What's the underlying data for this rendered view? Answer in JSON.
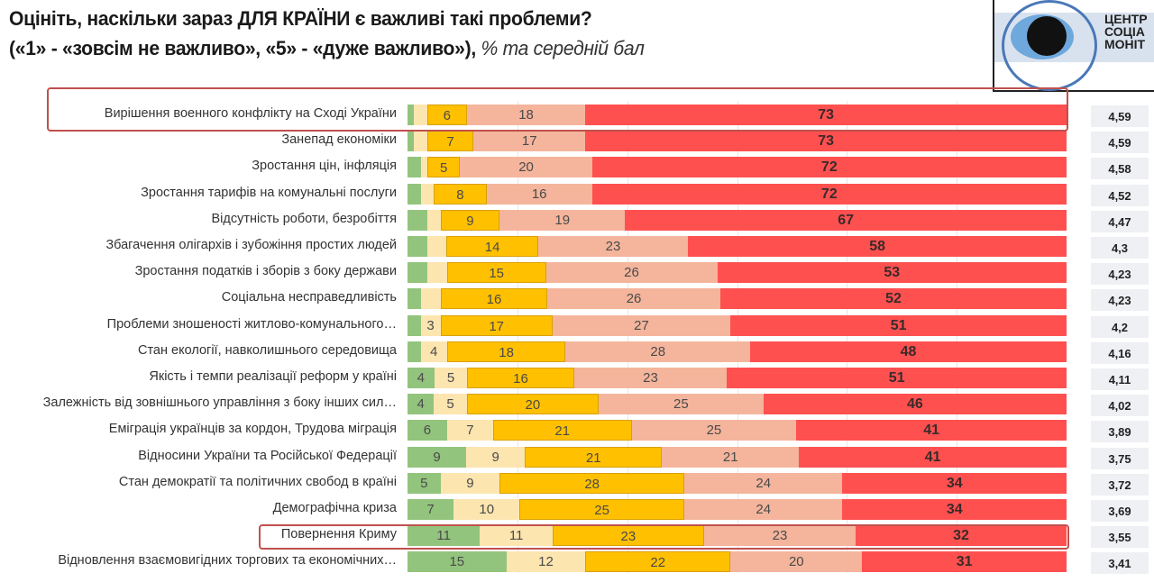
{
  "title_line1": "Оцініть, наскільки зараз ДЛЯ КРАЇНИ є важливі такі проблеми?",
  "title_line2": "(«1» - «зовсім не важливо», «5» - «дуже важливо»),",
  "title_line2_italic": "% та середній бал",
  "logo_text": [
    "ЦЕНТР",
    "СОЦІА",
    "МОНІТ"
  ],
  "chart_data": {
    "type": "bar",
    "orientation": "horizontal",
    "stacked": true,
    "unit": "%",
    "colors": [
      "#93c47d",
      "#fde5b0",
      "#ffc000",
      "#f4b59c",
      "#ff5050"
    ],
    "highlighted_rows": [
      0,
      16
    ],
    "rows": [
      {
        "label": "Вирішення военного конфлікту на Сході України",
        "values": [
          1,
          2,
          6,
          18,
          73
        ],
        "labels": [
          null,
          null,
          "6",
          "18",
          "73"
        ],
        "score": "4,59"
      },
      {
        "label": "Занепад економіки",
        "values": [
          1,
          2,
          7,
          17,
          73
        ],
        "labels": [
          null,
          null,
          "7",
          "17",
          "73"
        ],
        "score": "4,59"
      },
      {
        "label": "Зростання цін, інфляція",
        "values": [
          2,
          1,
          5,
          20,
          72
        ],
        "labels": [
          null,
          null,
          "5",
          "20",
          "72"
        ],
        "score": "4,58"
      },
      {
        "label": "Зростання тарифів на комунальні послуги",
        "values": [
          2,
          2,
          8,
          16,
          72
        ],
        "labels": [
          null,
          null,
          "8",
          "16",
          "72"
        ],
        "score": "4,52"
      },
      {
        "label": "Відсутність роботи, безробіття",
        "values": [
          3,
          2,
          9,
          19,
          67
        ],
        "labels": [
          null,
          null,
          "9",
          "19",
          "67"
        ],
        "score": "4,47"
      },
      {
        "label": "Збагачення олігархів і зубожіння простих людей",
        "values": [
          3,
          3,
          14,
          23,
          58
        ],
        "labels": [
          null,
          null,
          "14",
          "23",
          "58"
        ],
        "score": "4,3"
      },
      {
        "label": "Зростання податків і зборів з боку держави",
        "values": [
          3,
          3,
          15,
          26,
          53
        ],
        "labels": [
          null,
          null,
          "15",
          "26",
          "53"
        ],
        "score": "4,23"
      },
      {
        "label": "Соціальна несправедливість",
        "values": [
          2,
          3,
          16,
          26,
          52
        ],
        "labels": [
          null,
          null,
          "16",
          "26",
          "52"
        ],
        "score": "4,23"
      },
      {
        "label": "Проблеми зношеності житлово-комунального…",
        "values": [
          2,
          3,
          17,
          27,
          51
        ],
        "labels": [
          null,
          "3",
          "17",
          "27",
          "51"
        ],
        "score": "4,2"
      },
      {
        "label": "Стан екології, навколишнього середовища",
        "values": [
          2,
          4,
          18,
          28,
          48
        ],
        "labels": [
          null,
          "4",
          "18",
          "28",
          "48"
        ],
        "score": "4,16"
      },
      {
        "label": "Якість і темпи реалізації реформ у країні",
        "values": [
          4,
          5,
          16,
          23,
          51
        ],
        "labels": [
          "4",
          "5",
          "16",
          "23",
          "51"
        ],
        "score": "4,11"
      },
      {
        "label": "Залежність від зовнішнього управління з боку інших сил…",
        "values": [
          4,
          5,
          20,
          25,
          46
        ],
        "labels": [
          "4",
          "5",
          "20",
          "25",
          "46"
        ],
        "score": "4,02"
      },
      {
        "label": "Еміграція українців за кордон, Трудова міграція",
        "values": [
          6,
          7,
          21,
          25,
          41
        ],
        "labels": [
          "6",
          "7",
          "21",
          "25",
          "41"
        ],
        "score": "3,89"
      },
      {
        "label": "Відносини України та Російської Федерації",
        "values": [
          9,
          9,
          21,
          21,
          41
        ],
        "labels": [
          "9",
          "9",
          "21",
          "21",
          "41"
        ],
        "score": "3,75"
      },
      {
        "label": "Стан демократії та політичних свобод в країні",
        "values": [
          5,
          9,
          28,
          24,
          34
        ],
        "labels": [
          "5",
          "9",
          "28",
          "24",
          "34"
        ],
        "score": "3,72"
      },
      {
        "label": "Демографічна криза",
        "values": [
          7,
          10,
          25,
          24,
          34
        ],
        "labels": [
          "7",
          "10",
          "25",
          "24",
          "34"
        ],
        "score": "3,69"
      },
      {
        "label": "Повернення Криму",
        "values": [
          11,
          11,
          23,
          23,
          32
        ],
        "labels": [
          "11",
          "11",
          "23",
          "23",
          "32"
        ],
        "score": "3,55"
      },
      {
        "label": "Відновлення взаємовигідних торгових та економічних…",
        "values": [
          15,
          12,
          22,
          20,
          31
        ],
        "labels": [
          "15",
          "12",
          "22",
          "20",
          "31"
        ],
        "score": "3,41"
      }
    ]
  }
}
